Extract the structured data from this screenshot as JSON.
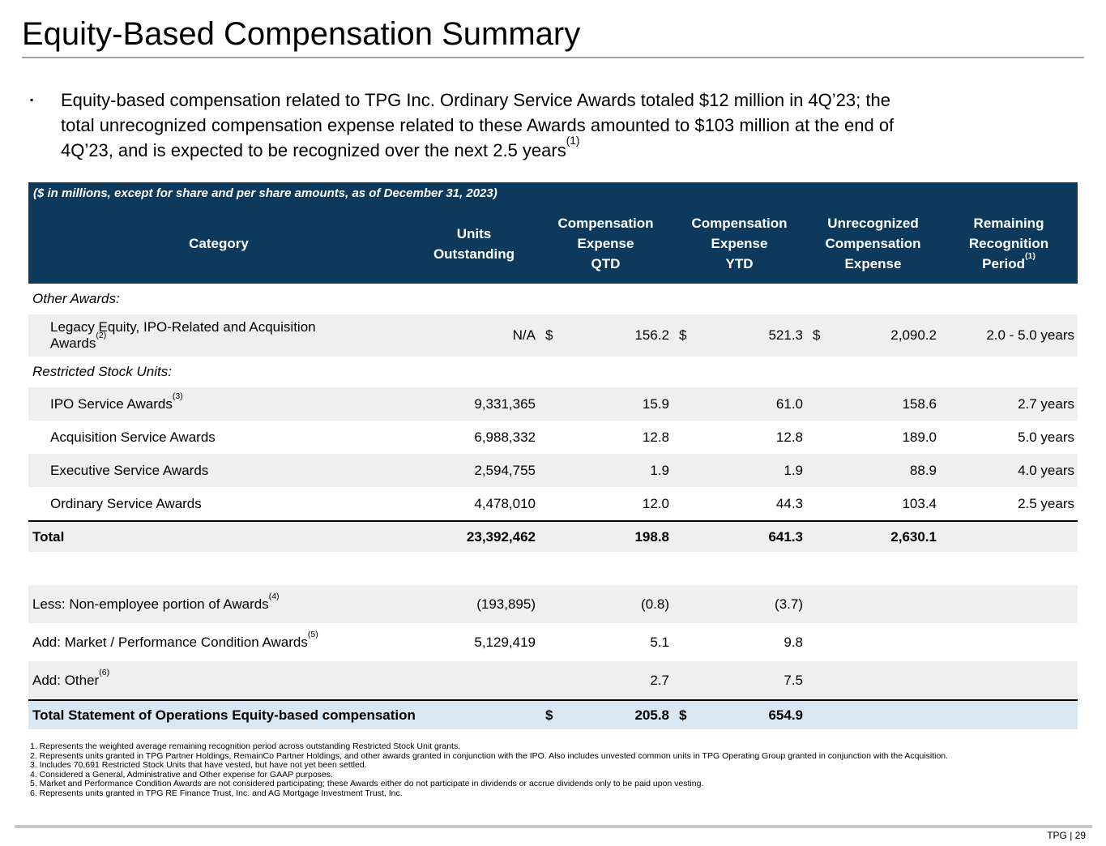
{
  "slide": {
    "title": "Equity-Based Compensation Summary",
    "bullet": {
      "marker": "▪",
      "text": "Equity-based compensation related to TPG Inc. Ordinary Service Awards totaled $12 million in 4Q’23; the\ntotal unrecognized compensation expense related to these Awards amounted to $103 million at the end of\n4Q’23, and is expected to be recognized over the next 2.5 years",
      "sup": "(1)"
    },
    "footer": {
      "page_label": "TPG | 29"
    }
  },
  "colors": {
    "header_navy": "#0d3a5c",
    "row_shade": "#efefef",
    "total_highlight": "#d9e7f2"
  },
  "table": {
    "caption": "($ in millions, except for share and per share amounts, as of December 31, 2023)",
    "columns": [
      {
        "label": "Category"
      },
      {
        "label": "Units\nOutstanding"
      },
      {
        "label": "Compensation\nExpense\nQTD"
      },
      {
        "label": "Compensation\nExpense\nYTD"
      },
      {
        "label": "Unrecognized\nCompensation\nExpense"
      },
      {
        "label": "Remaining\nRecognition\nPeriod",
        "sup": "(1)"
      }
    ],
    "rows": [
      {
        "type": "section",
        "label": "Other Awards:"
      },
      {
        "type": "data",
        "shaded": true,
        "tall": true,
        "label": "Legacy Equity, IPO-Related and Acquisition\nAwards",
        "sup": "(2)",
        "units": "N/A",
        "qtd_d": "$",
        "qtd": "156.2",
        "ytd_d": "$",
        "ytd": "521.3",
        "unrec_d": "$",
        "unrec": "2,090.2",
        "remaining": "2.0 - 5.0 years"
      },
      {
        "type": "section",
        "label": "Restricted Stock Units:"
      },
      {
        "type": "data",
        "shaded": true,
        "label": "IPO Service Awards",
        "sup": "(3)",
        "units": "9,331,365",
        "qtd": "15.9",
        "ytd": "61.0",
        "unrec": "158.6",
        "remaining": "2.7 years"
      },
      {
        "type": "data",
        "shaded": false,
        "label": "Acquisition Service Awards",
        "units": "6,988,332",
        "qtd": "12.8",
        "ytd": "12.8",
        "unrec": "189.0",
        "remaining": "5.0 years"
      },
      {
        "type": "data",
        "shaded": true,
        "label": "Executive Service Awards",
        "units": "2,594,755",
        "qtd": "1.9",
        "ytd": "1.9",
        "unrec": "88.9",
        "remaining": "4.0 years"
      },
      {
        "type": "data",
        "shaded": false,
        "label": "Ordinary Service Awards",
        "units": "4,478,010",
        "qtd": "12.0",
        "ytd": "44.3",
        "unrec": "103.4",
        "remaining": "2.5 years"
      },
      {
        "type": "total",
        "shaded": true,
        "label": "Total",
        "units": "23,392,462",
        "qtd": "198.8",
        "ytd": "641.3",
        "unrec": "2,630.1"
      },
      {
        "type": "spacer"
      },
      {
        "type": "data",
        "shaded": true,
        "flush": true,
        "label": "Less: Non-employee portion of Awards",
        "sup": "(4)",
        "units": "(193,895)",
        "qtd": "(0.8)",
        "ytd": "(3.7)"
      },
      {
        "type": "data",
        "shaded": false,
        "flush": true,
        "label": "Add: Market / Performance Condition Awards",
        "sup": "(5)",
        "units": "5,129,419",
        "qtd": "5.1",
        "ytd": "9.8"
      },
      {
        "type": "data",
        "shaded": true,
        "flush": true,
        "label": "Add: Other",
        "sup": "(6)",
        "qtd": "2.7",
        "ytd": "7.5"
      },
      {
        "type": "grand",
        "label": "Total Statement of Operations Equity-based compensation",
        "qtd_d": "$",
        "qtd": "205.8",
        "ytd_d": "$",
        "ytd": "654.9"
      }
    ]
  },
  "footnotes": [
    "1. Represents the weighted average remaining recognition period across outstanding Restricted Stock Unit grants.",
    "2. Represents units granted in TPG Partner Holdings, RemainCo Partner Holdings, and other awards granted in conjunction with the IPO. Also includes unvested common units in TPG Operating Group granted in conjunction with the Acquisition.",
    "3. Includes 70,691 Restricted Stock Units that have vested, but have not yet been settled.",
    "4. Considered a General, Administrative and Other expense for GAAP purposes.",
    "5. Market and Performance Condition Awards are not considered participating; these Awards either do not participate in dividends or accrue dividends only to be paid upon vesting.",
    "6. Represents units granted in TPG RE Finance Trust, Inc. and AG Mortgage Investment Trust, Inc."
  ]
}
